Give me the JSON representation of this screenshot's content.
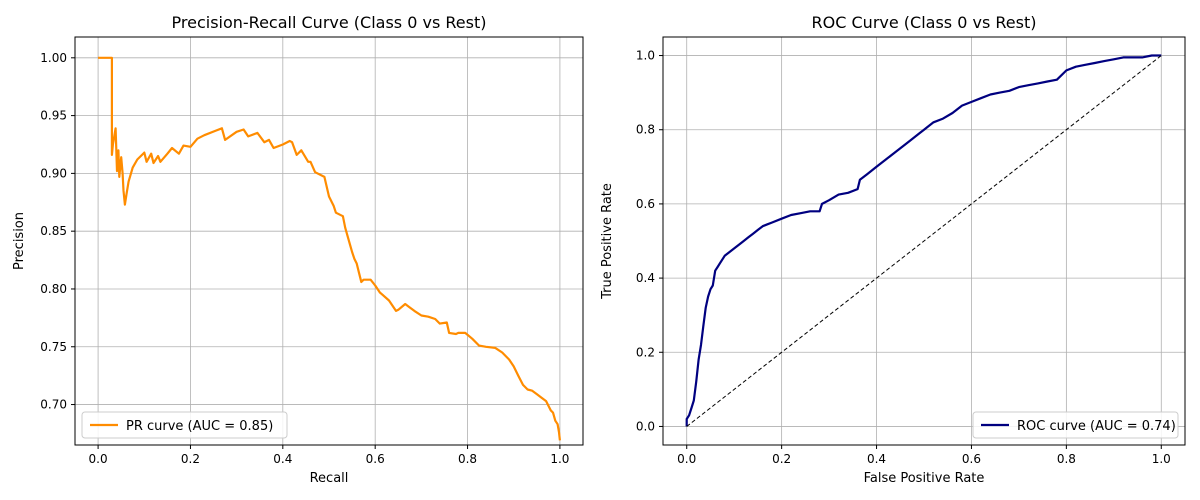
{
  "chart_data": [
    {
      "type": "line",
      "title": "Precision-Recall  Curve (Class 0 vs Rest)",
      "xlabel": "Recall",
      "ylabel": "Precision",
      "xlim": [
        -0.05,
        1.05
      ],
      "ylim": [
        0.665,
        1.018
      ],
      "xticks": [
        0.0,
        0.2,
        0.4,
        0.6,
        0.8,
        1.0
      ],
      "xtick_labels": [
        "0.0",
        "0.2",
        "0.4",
        "0.6",
        "0.8",
        "1.0"
      ],
      "yticks": [
        0.7,
        0.75,
        0.8,
        0.85,
        0.9,
        0.95,
        1.0
      ],
      "ytick_labels": [
        "0.70",
        "0.75",
        "0.80",
        "0.85",
        "0.90",
        "0.95",
        "1.00"
      ],
      "grid": true,
      "legend_position": "lower-left",
      "series": [
        {
          "name": "PR curve (AUC = 0.85)",
          "color": "#ff8c00",
          "x": [
            0.0,
            0.03,
            0.03,
            0.032,
            0.038,
            0.041,
            0.044,
            0.046,
            0.05,
            0.053,
            0.055,
            0.058,
            0.062,
            0.066,
            0.075,
            0.085,
            0.1,
            0.105,
            0.115,
            0.12,
            0.13,
            0.135,
            0.15,
            0.16,
            0.175,
            0.185,
            0.2,
            0.215,
            0.23,
            0.255,
            0.268,
            0.275,
            0.3,
            0.315,
            0.325,
            0.345,
            0.36,
            0.37,
            0.38,
            0.4,
            0.415,
            0.42,
            0.43,
            0.44,
            0.455,
            0.46,
            0.47,
            0.49,
            0.5,
            0.51,
            0.515,
            0.53,
            0.535,
            0.54,
            0.545,
            0.55,
            0.555,
            0.56,
            0.565,
            0.57,
            0.575,
            0.59,
            0.6,
            0.61,
            0.63,
            0.645,
            0.65,
            0.665,
            0.675,
            0.685,
            0.7,
            0.715,
            0.73,
            0.74,
            0.755,
            0.76,
            0.775,
            0.78,
            0.795,
            0.81,
            0.825,
            0.84,
            0.86,
            0.875,
            0.89,
            0.9,
            0.91,
            0.92,
            0.93,
            0.94,
            0.95,
            0.96,
            0.97,
            0.98,
            0.985,
            0.99,
            0.995,
            0.998,
            1.0
          ],
          "y": [
            1.0,
            1.0,
            0.916,
            0.925,
            0.939,
            0.902,
            0.92,
            0.897,
            0.914,
            0.9,
            0.885,
            0.873,
            0.883,
            0.893,
            0.905,
            0.912,
            0.918,
            0.91,
            0.917,
            0.909,
            0.915,
            0.91,
            0.917,
            0.922,
            0.917,
            0.924,
            0.923,
            0.93,
            0.933,
            0.937,
            0.939,
            0.929,
            0.936,
            0.938,
            0.932,
            0.935,
            0.927,
            0.929,
            0.922,
            0.925,
            0.928,
            0.927,
            0.916,
            0.92,
            0.91,
            0.91,
            0.901,
            0.897,
            0.88,
            0.872,
            0.866,
            0.863,
            0.853,
            0.846,
            0.839,
            0.832,
            0.826,
            0.822,
            0.814,
            0.806,
            0.808,
            0.808,
            0.803,
            0.797,
            0.79,
            0.781,
            0.782,
            0.787,
            0.784,
            0.781,
            0.777,
            0.776,
            0.774,
            0.77,
            0.771,
            0.762,
            0.761,
            0.762,
            0.762,
            0.757,
            0.751,
            0.75,
            0.749,
            0.745,
            0.739,
            0.733,
            0.725,
            0.717,
            0.713,
            0.712,
            0.709,
            0.706,
            0.703,
            0.695,
            0.693,
            0.686,
            0.683,
            0.676,
            0.669
          ]
        }
      ]
    },
    {
      "type": "line",
      "title": "ROC  Curve (Class 0 vs Rest)",
      "xlabel": "False  Positive Rate",
      "ylabel": "True  Positive Rate",
      "xlim": [
        -0.05,
        1.05
      ],
      "ylim": [
        -0.05,
        1.05
      ],
      "xticks": [
        0.0,
        0.2,
        0.4,
        0.6,
        0.8,
        1.0
      ],
      "xtick_labels": [
        "0.0",
        "0.2",
        "0.4",
        "0.6",
        "0.8",
        "1.0"
      ],
      "yticks": [
        0.0,
        0.2,
        0.4,
        0.6,
        0.8,
        1.0
      ],
      "ytick_labels": [
        "0.0",
        "0.2",
        "0.4",
        "0.6",
        "0.8",
        "1.0"
      ],
      "grid": true,
      "legend_position": "lower-right",
      "series": [
        {
          "name": "ROC curve (AUC = 0.74)",
          "color": "#000080",
          "x": [
            0.0,
            0.0,
            0.005,
            0.01,
            0.015,
            0.02,
            0.025,
            0.03,
            0.035,
            0.04,
            0.045,
            0.05,
            0.055,
            0.06,
            0.065,
            0.07,
            0.08,
            0.09,
            0.1,
            0.11,
            0.12,
            0.13,
            0.14,
            0.15,
            0.16,
            0.17,
            0.18,
            0.2,
            0.22,
            0.24,
            0.26,
            0.28,
            0.285,
            0.3,
            0.32,
            0.34,
            0.36,
            0.365,
            0.38,
            0.4,
            0.42,
            0.44,
            0.46,
            0.47,
            0.49,
            0.5,
            0.52,
            0.54,
            0.56,
            0.58,
            0.6,
            0.62,
            0.64,
            0.66,
            0.68,
            0.7,
            0.72,
            0.74,
            0.76,
            0.78,
            0.8,
            0.82,
            0.84,
            0.86,
            0.88,
            0.9,
            0.92,
            0.94,
            0.96,
            0.98,
            1.0
          ],
          "y": [
            0.0,
            0.02,
            0.03,
            0.05,
            0.07,
            0.12,
            0.18,
            0.22,
            0.27,
            0.32,
            0.35,
            0.37,
            0.38,
            0.42,
            0.43,
            0.44,
            0.46,
            0.47,
            0.48,
            0.49,
            0.5,
            0.51,
            0.52,
            0.53,
            0.54,
            0.545,
            0.55,
            0.56,
            0.57,
            0.575,
            0.58,
            0.58,
            0.6,
            0.61,
            0.625,
            0.63,
            0.64,
            0.665,
            0.68,
            0.7,
            0.72,
            0.74,
            0.76,
            0.77,
            0.79,
            0.8,
            0.82,
            0.83,
            0.845,
            0.865,
            0.875,
            0.885,
            0.895,
            0.9,
            0.905,
            0.915,
            0.92,
            0.925,
            0.93,
            0.935,
            0.96,
            0.97,
            0.975,
            0.98,
            0.985,
            0.99,
            0.995,
            0.995,
            0.995,
            1.0,
            1.0
          ]
        },
        {
          "name": "",
          "color": "#000000",
          "dashed": true,
          "x": [
            0.0,
            1.0
          ],
          "y": [
            0.0,
            1.0
          ]
        }
      ]
    }
  ]
}
